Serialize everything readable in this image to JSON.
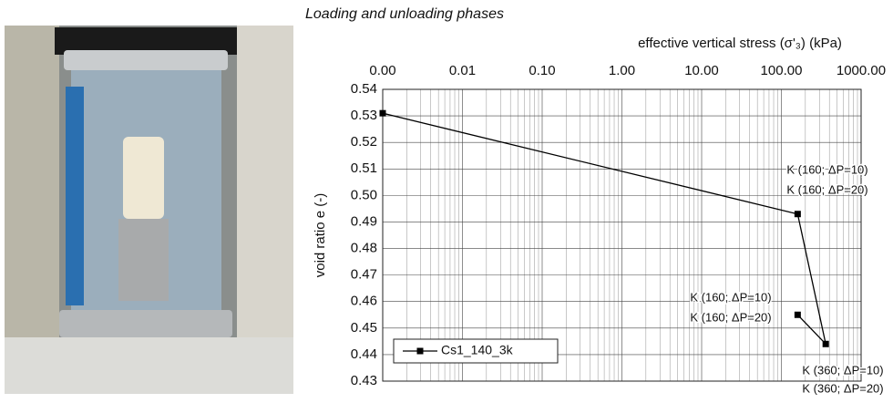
{
  "chart_data": {
    "type": "line",
    "title": "Loading and unloading phases",
    "x_label": "effective vertical stress (σ'₃) (kPa)",
    "y_label": "void ratio  e (-)",
    "xscale": "log",
    "xlim": [
      0.001,
      1000
    ],
    "xticks": [
      {
        "value": 0.001,
        "label": "0.00"
      },
      {
        "value": 0.01,
        "label": "0.01"
      },
      {
        "value": 0.1,
        "label": "0.10"
      },
      {
        "value": 1,
        "label": "1.00"
      },
      {
        "value": 10,
        "label": "10.00"
      },
      {
        "value": 100,
        "label": "100.00"
      },
      {
        "value": 1000,
        "label": "1000.00"
      }
    ],
    "ylim": [
      0.43,
      0.54
    ],
    "yticks": [
      0.43,
      0.44,
      0.45,
      0.46,
      0.47,
      0.48,
      0.49,
      {
        "value": 0.5,
        "label": "0.50"
      },
      0.51,
      0.52,
      0.53,
      0.54
    ],
    "grid": true,
    "legend": "bottom-left",
    "x": [
      0.001,
      160,
      360,
      160
    ],
    "series": [
      {
        "name": "Cs1_140_3k",
        "color": "#000000",
        "values": [
          0.531,
          0.493,
          0.444,
          0.455
        ]
      }
    ],
    "annotations": [
      "K (160; ΔP=10)",
      "K (160; ΔP=20)",
      "K (160; ΔP=10)",
      "K (160; ΔP=20)",
      "K (360; ΔP=10)",
      "K (360; ΔP=20)"
    ]
  }
}
